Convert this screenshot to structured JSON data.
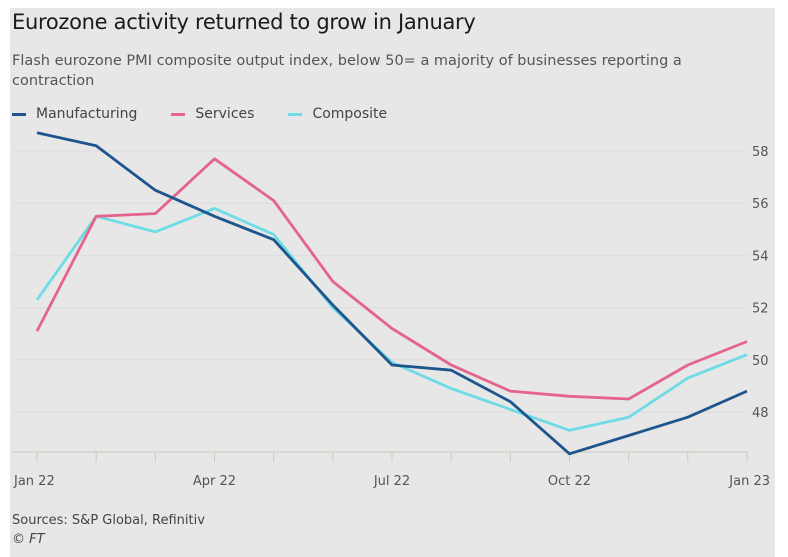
{
  "chart_data": {
    "type": "line",
    "title": "Eurozone activity returned to grow in January",
    "subtitle": "Flash eurozone PMI composite output index, below 50= a majority of businesses reporting a contraction",
    "x": [
      "Jan 22",
      "Feb 22",
      "Mar 22",
      "Apr 22",
      "May 22",
      "Jun 22",
      "Jul 22",
      "Aug 22",
      "Sep 22",
      "Oct 22",
      "Nov 22",
      "Dec 22",
      "Jan 23"
    ],
    "xtick_labels": [
      "Jan 22",
      "Apr 22",
      "Jul 22",
      "Oct 22",
      "Jan 23"
    ],
    "yticks": [
      48,
      50,
      52,
      54,
      56,
      58
    ],
    "ylim": [
      46.5,
      59
    ],
    "y_axis_side": "right",
    "grid": true,
    "legend_placement": "top-left",
    "series": [
      {
        "name": "Manufacturing",
        "color": "#1e558c",
        "values": [
          58.7,
          58.2,
          56.5,
          55.5,
          54.6,
          52.1,
          49.8,
          49.6,
          48.4,
          46.4,
          47.1,
          47.8,
          48.8
        ]
      },
      {
        "name": "Services",
        "color": "#e5638c",
        "values": [
          51.1,
          55.5,
          55.6,
          57.7,
          56.1,
          53.0,
          51.2,
          49.8,
          48.8,
          48.6,
          48.5,
          49.8,
          50.7
        ]
      },
      {
        "name": "Composite",
        "color": "#6fdbe6",
        "values": [
          52.3,
          55.5,
          54.9,
          55.8,
          54.8,
          52.0,
          49.9,
          48.9,
          48.1,
          47.3,
          47.8,
          49.3,
          50.2
        ]
      }
    ],
    "source": "Sources: S&P Global, Refinitiv",
    "copyright": "© FT"
  }
}
